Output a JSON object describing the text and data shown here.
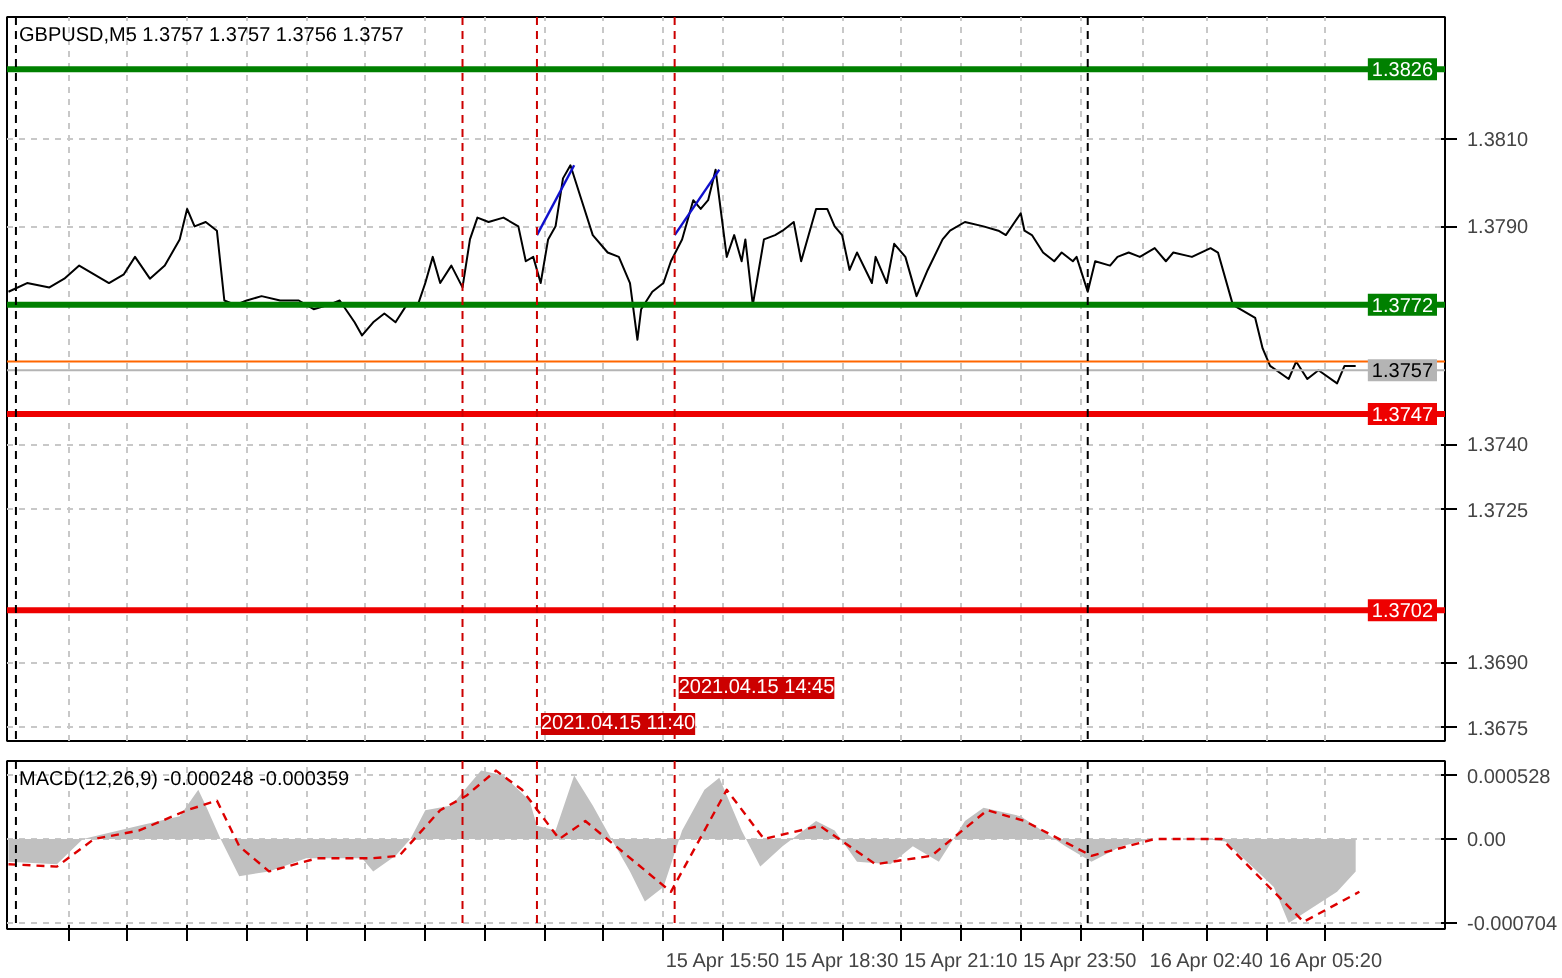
{
  "chart_data": [
    {
      "type": "line",
      "title": "GBPUSD,M5 1.3757 1.3757 1.3756 1.3757",
      "series": [
        {
          "color": "#000000",
          "x": [
            "2021-04-14T23:50",
            "2021-04-15T00:15",
            "2021-04-15T00:45",
            "2021-04-15T01:05",
            "2021-04-15T01:25",
            "2021-04-15T01:45",
            "2021-04-15T02:05",
            "2021-04-15T02:25",
            "2021-04-15T02:40",
            "2021-04-15T03:00",
            "2021-04-15T03:20",
            "2021-04-15T03:40",
            "2021-04-15T03:50",
            "2021-04-15T04:00",
            "2021-04-15T04:15",
            "2021-04-15T04:30",
            "2021-04-15T04:40",
            "2021-04-15T04:55",
            "2021-04-15T05:10",
            "2021-04-15T05:30",
            "2021-04-15T05:55",
            "2021-04-15T06:20",
            "2021-04-15T06:40",
            "2021-04-15T07:00",
            "2021-04-15T07:15",
            "2021-04-15T07:35",
            "2021-04-15T07:45",
            "2021-04-15T08:00",
            "2021-04-15T08:15",
            "2021-04-15T08:30",
            "2021-04-15T08:45",
            "2021-04-15T09:00",
            "2021-04-15T09:10",
            "2021-04-15T09:20",
            "2021-04-15T09:30",
            "2021-04-15T09:45",
            "2021-04-15T10:00",
            "2021-04-15T10:10",
            "2021-04-15T10:20",
            "2021-04-15T10:35",
            "2021-04-15T10:55",
            "2021-04-15T11:15",
            "2021-04-15T11:25",
            "2021-04-15T11:35",
            "2021-04-15T11:45",
            "2021-04-15T11:55",
            "2021-04-15T12:05",
            "2021-04-15T12:15",
            "2021-04-15T12:25",
            "2021-04-15T12:40",
            "2021-04-15T12:55",
            "2021-04-15T13:15",
            "2021-04-15T13:30",
            "2021-04-15T13:45",
            "2021-04-15T13:55",
            "2021-04-15T14:00",
            "2021-04-15T14:15",
            "2021-04-15T14:30",
            "2021-04-15T14:40",
            "2021-04-15T14:55",
            "2021-04-15T15:10",
            "2021-04-15T15:20",
            "2021-04-15T15:30",
            "2021-04-15T15:40",
            "2021-04-15T15:55",
            "2021-04-15T16:05",
            "2021-04-15T16:15",
            "2021-04-15T16:20",
            "2021-04-15T16:30",
            "2021-04-15T16:45",
            "2021-04-15T17:00",
            "2021-04-15T17:10",
            "2021-04-15T17:25",
            "2021-04-15T17:35",
            "2021-04-15T17:55",
            "2021-04-15T18:10",
            "2021-04-15T18:20",
            "2021-04-15T18:30",
            "2021-04-15T18:40",
            "2021-04-15T18:50",
            "2021-04-15T19:10",
            "2021-04-15T19:15",
            "2021-04-15T19:30",
            "2021-04-15T19:40",
            "2021-04-15T19:55",
            "2021-04-15T20:10",
            "2021-04-15T20:25",
            "2021-04-15T20:45",
            "2021-04-15T20:55",
            "2021-04-15T21:15",
            "2021-04-15T21:40",
            "2021-04-15T22:00",
            "2021-04-15T22:10",
            "2021-04-15T22:30",
            "2021-04-15T22:35",
            "2021-04-15T22:45",
            "2021-04-15T23:00",
            "2021-04-15T23:15",
            "2021-04-15T23:25",
            "2021-04-15T23:40",
            "2021-04-15T23:45",
            "2021-04-16T00:00",
            "2021-04-16T00:10",
            "2021-04-16T00:30",
            "2021-04-16T00:40",
            "2021-04-16T00:55",
            "2021-04-16T01:10",
            "2021-04-16T01:30",
            "2021-04-16T01:45",
            "2021-04-16T01:55",
            "2021-04-16T02:20",
            "2021-04-16T02:45",
            "2021-04-16T02:55",
            "2021-04-16T03:15",
            "2021-04-16T03:45",
            "2021-04-16T03:55",
            "2021-04-16T04:05",
            "2021-04-16T04:30",
            "2021-04-16T04:40",
            "2021-04-16T04:55",
            "2021-04-16T05:10",
            "2021-04-16T05:35",
            "2021-04-16T05:45",
            "2021-04-16T06:00"
          ],
          "values": [
            1.3775,
            1.3777,
            1.3776,
            1.3778,
            1.3781,
            1.3779,
            1.3777,
            1.3779,
            1.3783,
            1.3778,
            1.3781,
            1.3787,
            1.3794,
            1.379,
            1.3791,
            1.3789,
            1.3773,
            1.3772,
            1.3773,
            1.3774,
            1.3773,
            1.3773,
            1.3771,
            1.3772,
            1.3773,
            1.3768,
            1.3765,
            1.3768,
            1.377,
            1.3768,
            1.3772,
            1.3772,
            1.3777,
            1.3783,
            1.3777,
            1.3781,
            1.3776,
            1.3787,
            1.3792,
            1.3791,
            1.3792,
            1.379,
            1.3782,
            1.3783,
            1.3777,
            1.3787,
            1.379,
            1.3801,
            1.3804,
            1.3796,
            1.3788,
            1.3784,
            1.3783,
            1.3777,
            1.3764,
            1.3771,
            1.3775,
            1.3777,
            1.3782,
            1.3787,
            1.3796,
            1.3794,
            1.3796,
            1.3803,
            1.3783,
            1.3788,
            1.3782,
            1.3787,
            1.3772,
            1.3787,
            1.3788,
            1.3789,
            1.3791,
            1.3782,
            1.3794,
            1.3794,
            1.379,
            1.3788,
            1.378,
            1.3784,
            1.3777,
            1.3783,
            1.3777,
            1.3786,
            1.3783,
            1.3774,
            1.378,
            1.3787,
            1.3789,
            1.3791,
            1.379,
            1.3789,
            1.3788,
            1.3793,
            1.3789,
            1.3788,
            1.3784,
            1.3782,
            1.3784,
            1.3782,
            1.3783,
            1.3775,
            1.3782,
            1.3781,
            1.3783,
            1.3784,
            1.3783,
            1.3785,
            1.3782,
            1.3784,
            1.3783,
            1.3785,
            1.3784,
            1.3772,
            1.3769,
            1.3762,
            1.3758,
            1.3755,
            1.3759,
            1.3755,
            1.3757,
            1.3754,
            1.3758,
            1.3758
          ]
        },
        {
          "color": "#1010cc",
          "x": [
            "2021-04-15T11:40",
            "2021-04-15T12:30"
          ],
          "values": [
            1.3788,
            1.3804
          ]
        },
        {
          "color": "#1010cc",
          "x": [
            "2021-04-15T14:45",
            "2021-04-15T15:45"
          ],
          "values": [
            1.3788,
            1.3803
          ]
        }
      ],
      "xlim": [
        "2021-04-14T23:48",
        "2021-04-16T08:00"
      ],
      "ylim": [
        1.3672,
        1.3838
      ],
      "xticks": [
        {
          "value": "2021-04-15T01:10",
          "label": null
        },
        {
          "value": "2021-04-15T02:30",
          "label": null
        },
        {
          "value": "2021-04-15T03:50",
          "label": null
        },
        {
          "value": "2021-04-15T05:10",
          "label": null
        },
        {
          "value": "2021-04-15T06:30",
          "label": null
        },
        {
          "value": "2021-04-15T07:50",
          "label": null
        },
        {
          "value": "2021-04-15T09:10",
          "label": null
        },
        {
          "value": "2021-04-15T10:30",
          "label": null
        },
        {
          "value": "2021-04-15T11:50",
          "label": null
        },
        {
          "value": "2021-04-15T13:10",
          "label": null
        },
        {
          "value": "2021-04-15T14:30",
          "label": null
        },
        {
          "value": "2021-04-15T15:50",
          "label": null
        },
        {
          "value": "2021-04-15T17:10",
          "label": null
        },
        {
          "value": "2021-04-15T18:30",
          "label": null
        },
        {
          "value": "2021-04-15T19:50",
          "label": null
        },
        {
          "value": "2021-04-15T21:10",
          "label": null
        },
        {
          "value": "2021-04-15T22:30",
          "label": null
        },
        {
          "value": "2021-04-15T23:50",
          "label": null
        },
        {
          "value": "2021-04-16T01:15",
          "label": null
        },
        {
          "value": "2021-04-16T02:40",
          "label": null
        },
        {
          "value": "2021-04-16T04:00",
          "label": null
        },
        {
          "value": "2021-04-16T05:20",
          "label": null
        }
      ],
      "yticks": [
        {
          "value": 1.381,
          "label": "1.3810"
        },
        {
          "value": 1.379,
          "label": "1.3790"
        },
        {
          "value": 1.374,
          "label": "1.3740"
        },
        1.3725,
        {
          "value": 1.369,
          "label": "1.3690"
        },
        1.3675
      ],
      "tick_labels": "y",
      "grid": true,
      "ref_lines": [
        {
          "axis": "y",
          "value": 1.3826,
          "label": "1.3826",
          "color": "#008000"
        },
        {
          "axis": "y",
          "value": 1.3772,
          "label": "1.3772",
          "color": "#008000"
        },
        {
          "axis": "y",
          "value": 1.3759,
          "color": "#ff6600"
        },
        {
          "axis": "y",
          "value": 1.3757,
          "label": "1.3757",
          "color": "#b4b4b4"
        },
        {
          "axis": "y",
          "value": 1.3747,
          "label": "1.3747",
          "color": "#ee0000"
        },
        {
          "axis": "y",
          "value": 1.3702,
          "label": "1.3702",
          "color": "#ee0000"
        },
        {
          "axis": "x",
          "value": "2021-04-15T00:00",
          "color": "#000000",
          "line_style": "dashed"
        },
        {
          "axis": "x",
          "value": "2021-04-16T00:00",
          "color": "#000000",
          "line_style": "dashed"
        },
        {
          "axis": "x",
          "value": "2021-04-15T10:00",
          "color": "#cc0000",
          "line_style": "dashed"
        },
        {
          "axis": "x",
          "value": "2021-04-15T11:40",
          "label": "2021.04.15 11:40",
          "color": "#cc0000",
          "line_style": "dashed"
        },
        {
          "axis": "x",
          "value": "2021-04-15T14:45",
          "label": "2021.04.15 14:45",
          "color": "#cc0000",
          "line_style": "dashed"
        }
      ]
    },
    {
      "type": "area",
      "title": "MACD(12,26,9) -0.000248 -0.000359",
      "series": [
        {
          "type": "area",
          "color": "#c0c0c0",
          "x": [
            "2021-04-14T23:50",
            "2021-04-15T00:55",
            "2021-04-15T01:30",
            "2021-04-15T02:45",
            "2021-04-15T03:40",
            "2021-04-15T04:05",
            "2021-04-15T04:15",
            "2021-04-15T04:35",
            "2021-04-15T05:00",
            "2021-04-15T05:40",
            "2021-04-15T06:30",
            "2021-04-15T07:45",
            "2021-04-15T08:00",
            "2021-04-15T08:30",
            "2021-04-15T08:50",
            "2021-04-15T09:10",
            "2021-04-15T09:45",
            "2021-04-15T10:25",
            "2021-04-15T10:55",
            "2021-04-15T11:30",
            "2021-04-15T11:40",
            "2021-04-15T12:05",
            "2021-04-15T12:30",
            "2021-04-15T12:55",
            "2021-04-15T13:20",
            "2021-04-15T13:45",
            "2021-04-15T14:05",
            "2021-04-15T14:30",
            "2021-04-15T14:55",
            "2021-04-15T15:25",
            "2021-04-15T15:45",
            "2021-04-15T16:15",
            "2021-04-15T16:40",
            "2021-04-15T17:10",
            "2021-04-15T17:55",
            "2021-04-15T18:20",
            "2021-04-15T18:50",
            "2021-04-15T19:35",
            "2021-04-15T20:05",
            "2021-04-15T20:40",
            "2021-04-15T21:15",
            "2021-04-15T21:40",
            "2021-04-15T22:30",
            "2021-04-15T23:30",
            "2021-04-16T00:05",
            "2021-04-16T00:45",
            "2021-04-16T01:25",
            "2021-04-16T02:40",
            "2021-04-16T03:05",
            "2021-04-16T04:10",
            "2021-04-16T04:30",
            "2021-04-16T05:35",
            "2021-04-16T06:00"
          ],
          "values": [
            -0.00019,
            -0.00021,
            0.0,
            0.00011,
            0.00019,
            0.00041,
            0.00028,
            0.0,
            -0.00031,
            -0.00027,
            -0.00016,
            -0.00016,
            -0.00027,
            -0.00014,
            0.0,
            0.00024,
            0.00028,
            0.00057,
            0.00053,
            0.00032,
            0.00011,
            7e-05,
            0.00053,
            0.00028,
            0.0,
            -0.00027,
            -0.00052,
            -0.0004,
            7e-05,
            0.00041,
            0.00051,
            7e-05,
            -0.00023,
            -6e-05,
            0.00015,
            7e-05,
            -0.00019,
            -0.00021,
            -6e-05,
            -0.00019,
            0.00015,
            0.00026,
            0.00019,
            -6e-05,
            -0.00019,
            -6e-05,
            0.0,
            0.0,
            -2e-05,
            -0.0004,
            -0.0007,
            -0.00044,
            -0.00027
          ]
        },
        {
          "type": "line",
          "color": "#dd0000",
          "line_style": "dashed",
          "x": [
            "2021-04-14T23:50",
            "2021-04-15T00:55",
            "2021-04-15T01:45",
            "2021-04-15T02:45",
            "2021-04-15T03:50",
            "2021-04-15T04:30",
            "2021-04-15T05:00",
            "2021-04-15T05:40",
            "2021-04-15T06:45",
            "2021-04-15T08:00",
            "2021-04-15T08:35",
            "2021-04-15T09:30",
            "2021-04-15T10:05",
            "2021-04-15T10:45",
            "2021-04-15T11:20",
            "2021-04-15T12:10",
            "2021-04-15T12:45",
            "2021-04-15T14:40",
            "2021-04-15T15:55",
            "2021-04-15T16:45",
            "2021-04-15T18:00",
            "2021-04-15T19:15",
            "2021-04-15T20:30",
            "2021-04-15T21:45",
            "2021-04-15T22:35",
            "2021-04-16T00:05",
            "2021-04-16T01:30",
            "2021-04-16T03:00",
            "2021-04-16T04:50",
            "2021-04-16T06:05"
          ],
          "values": [
            -0.00021,
            -0.00023,
            0.0,
            7e-05,
            0.00024,
            0.00032,
            -6e-05,
            -0.00027,
            -0.00016,
            -0.00016,
            -0.00014,
            0.00024,
            0.00036,
            0.00057,
            0.00041,
            0.0,
            0.00015,
            -0.00044,
            0.00041,
            0.0,
            0.00011,
            -0.00021,
            -0.00014,
            0.00024,
            0.00015,
            -0.00014,
            0.0,
            0.0,
            -0.00069,
            -0.00044
          ]
        }
      ],
      "xlim": [
        "2021-04-14T23:48",
        "2021-04-16T08:00"
      ],
      "ylim": [
        -0.00075,
        0.00065
      ],
      "xticks": [
        {
          "value": "2021-04-15T01:10",
          "label": null
        },
        {
          "value": "2021-04-15T02:30",
          "label": null
        },
        {
          "value": "2021-04-15T03:50",
          "label": null
        },
        {
          "value": "2021-04-15T05:10",
          "label": null
        },
        {
          "value": "2021-04-15T06:30",
          "label": null
        },
        {
          "value": "2021-04-15T07:50",
          "label": null
        },
        {
          "value": "2021-04-15T09:10",
          "label": null
        },
        {
          "value": "2021-04-15T10:30",
          "label": null
        },
        {
          "value": "2021-04-15T11:50",
          "label": null
        },
        {
          "value": "2021-04-15T13:10",
          "label": null
        },
        {
          "value": "2021-04-15T14:30",
          "label": null
        },
        {
          "value": "2021-04-15T15:50",
          "label": "15 Apr 15:50"
        },
        {
          "value": "2021-04-15T17:10",
          "label": null
        },
        {
          "value": "2021-04-15T18:30",
          "label": "15 Apr 18:30"
        },
        {
          "value": "2021-04-15T19:50",
          "label": null
        },
        {
          "value": "2021-04-15T21:10",
          "label": "15 Apr 21:10"
        },
        {
          "value": "2021-04-15T22:30",
          "label": null
        },
        {
          "value": "2021-04-15T23:50",
          "label": "15 Apr 23:50"
        },
        {
          "value": "2021-04-16T01:15",
          "label": null
        },
        {
          "value": "2021-04-16T02:40",
          "label": "16 Apr 02:40"
        },
        {
          "value": "2021-04-16T04:00",
          "label": null
        },
        {
          "value": "2021-04-16T05:20",
          "label": "16 Apr 05:20"
        }
      ],
      "yticks": [
        {
          "value": 0.000528,
          "label": "0.000528"
        },
        {
          "value": 0,
          "label": "0.00"
        },
        {
          "value": -0.000704,
          "label": "-0.000704"
        }
      ],
      "grid": true,
      "ref_lines": [
        {
          "axis": "x",
          "value": "2021-04-15T00:00",
          "color": "#000000",
          "line_style": "dashed"
        },
        {
          "axis": "x",
          "value": "2021-04-16T00:00",
          "color": "#000000",
          "line_style": "dashed"
        },
        {
          "axis": "x",
          "value": "2021-04-15T10:00",
          "color": "#cc0000",
          "line_style": "dashed"
        },
        {
          "axis": "x",
          "value": "2021-04-15T11:40",
          "color": "#cc0000",
          "line_style": "dashed"
        },
        {
          "axis": "x",
          "value": "2021-04-15T14:45",
          "color": "#cc0000",
          "line_style": "dashed"
        }
      ]
    }
  ]
}
